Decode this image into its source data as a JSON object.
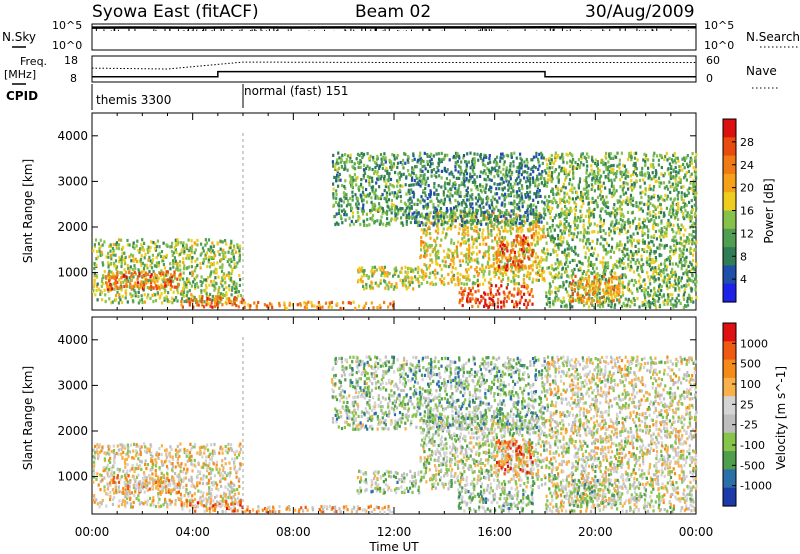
{
  "header": {
    "station": "Syowa East (fitACF)",
    "beam": "Beam 02",
    "date": "30/Aug/2009"
  },
  "summary_panels": {
    "nsky_label": "N.Sky",
    "nsky_ticks": [
      "10^5",
      "10^0"
    ],
    "nsearch_label": "N.Search",
    "nsearch_ticks": [
      "10^5",
      "10^0"
    ],
    "freq_label": "Freq.",
    "freq_unit": "[MHz]",
    "freq_ticks": [
      "18",
      "8"
    ],
    "nave_label": "Nave",
    "nave_ticks": [
      "60",
      "0"
    ],
    "cpid_label": "CPID"
  },
  "cpid_segments": [
    {
      "name": "themis 3300",
      "start_hr": 0,
      "end_hr": 6
    },
    {
      "name": "normal (fast) 151",
      "start_hr": 6,
      "end_hr": 24
    }
  ],
  "colors": {
    "power_scale": [
      "#1e22e8",
      "#1f4fa8",
      "#2f7d55",
      "#4f9e52",
      "#86c24a",
      "#f0cc1e",
      "#f5a21a",
      "#f07a14",
      "#e84a10",
      "#dd1010"
    ],
    "velocity_scale": [
      "#e01010",
      "#ee5a12",
      "#f48a18",
      "#f7b24a",
      "#d4d4d4",
      "#bebebe",
      "#86c44a",
      "#4f9e4c",
      "#2b6fa8",
      "#1c3aa8"
    ]
  },
  "chart_data": [
    {
      "type": "line",
      "title": "N.Sky / N.Search",
      "series": [
        {
          "name": "N.Sky",
          "style": "solid",
          "x": [
            0,
            2,
            4,
            6,
            8,
            10,
            12,
            14,
            16,
            18,
            20,
            22,
            24
          ],
          "values": [
            20000,
            21000,
            20500,
            22000,
            21500,
            22500,
            21000,
            23000,
            22000,
            24000,
            23000,
            25000,
            24000
          ]
        },
        {
          "name": "N.Search",
          "style": "dotted",
          "x": [
            0,
            6,
            12,
            18,
            24
          ],
          "values": [
            1,
            1,
            1,
            1,
            1
          ]
        }
      ],
      "ylim": [
        1,
        100000
      ],
      "yscale": "log",
      "xlim": [
        0,
        24
      ]
    },
    {
      "type": "line",
      "title": "Freq. / Nave",
      "series": [
        {
          "name": "Freq.",
          "style": "solid",
          "x": [
            0,
            5,
            5,
            18,
            18,
            24
          ],
          "values": [
            10,
            10,
            12,
            12,
            10,
            10
          ]
        },
        {
          "name": "Nave",
          "style": "dotted",
          "x": [
            0,
            3,
            6,
            12,
            18,
            24
          ],
          "values": [
            32,
            30,
            46,
            45,
            45,
            45
          ]
        }
      ],
      "y_left": {
        "label": "Freq. [MHz]",
        "lim": [
          8,
          18
        ]
      },
      "y_right": {
        "label": "Nave",
        "lim": [
          0,
          60
        ]
      },
      "xlim": [
        0,
        24
      ]
    },
    {
      "type": "heatmap",
      "title": "Power",
      "xlabel": "",
      "ylabel": "Slant Range [km]",
      "xlim": [
        0,
        24
      ],
      "ylim": [
        180,
        4500
      ],
      "xticks": [
        "00:00",
        "04:00",
        "08:00",
        "12:00",
        "16:00",
        "20:00",
        "00:00"
      ],
      "yticks": [
        1000,
        2000,
        3000,
        4000
      ],
      "colorbar": {
        "label": "Power [dB]",
        "ticks": [
          4,
          8,
          12,
          16,
          20,
          24,
          28
        ]
      },
      "regions": [
        {
          "t0": 0.0,
          "t1": 5.9,
          "r0": 300,
          "r1": 1700,
          "level": 0.45
        },
        {
          "t0": 0.5,
          "t1": 3.5,
          "r0": 600,
          "r1": 1000,
          "level": 0.8
        },
        {
          "t0": 3.5,
          "t1": 6.0,
          "r0": 200,
          "r1": 450,
          "level": 0.75
        },
        {
          "t0": 6.0,
          "t1": 12.0,
          "r0": 180,
          "r1": 330,
          "level": 0.7
        },
        {
          "t0": 10.5,
          "t1": 13.0,
          "r0": 600,
          "r1": 1100,
          "level": 0.5
        },
        {
          "t0": 13.0,
          "t1": 18.0,
          "r0": 700,
          "r1": 2300,
          "level": 0.55
        },
        {
          "t0": 14.5,
          "t1": 17.5,
          "r0": 200,
          "r1": 700,
          "level": 0.85
        },
        {
          "t0": 16.0,
          "t1": 17.5,
          "r0": 1000,
          "r1": 1800,
          "level": 0.8
        },
        {
          "t0": 12.5,
          "t1": 18.0,
          "r0": 2000,
          "r1": 3600,
          "level": 0.3
        },
        {
          "t0": 18.0,
          "t1": 24.0,
          "r0": 200,
          "r1": 3600,
          "level": 0.4
        },
        {
          "t0": 19.0,
          "t1": 21.0,
          "r0": 300,
          "r1": 900,
          "level": 0.7
        },
        {
          "t0": 9.5,
          "t1": 12.5,
          "r0": 2000,
          "r1": 3600,
          "level": 0.35
        }
      ]
    },
    {
      "type": "heatmap",
      "title": "Velocity",
      "xlabel": "Time UT",
      "ylabel": "Slant Range [km]",
      "xlim": [
        0,
        24
      ],
      "ylim": [
        180,
        4500
      ],
      "xticks": [
        "00:00",
        "04:00",
        "08:00",
        "12:00",
        "16:00",
        "20:00",
        "00:00"
      ],
      "yticks": [
        1000,
        2000,
        3000,
        4000
      ],
      "colorbar": {
        "label": "Velocity [m s^-1]",
        "ticks": [
          "1000",
          "500",
          "100",
          "25",
          "-25",
          "-100",
          "-500",
          "-1000"
        ]
      },
      "regions": [
        {
          "t0": 0.0,
          "t1": 5.9,
          "r0": 300,
          "r1": 1700,
          "level": 0.45
        },
        {
          "t0": 0.5,
          "t1": 3.5,
          "r0": 600,
          "r1": 1000,
          "level": 0.35
        },
        {
          "t0": 3.5,
          "t1": 6.0,
          "r0": 200,
          "r1": 450,
          "level": 0.3
        },
        {
          "t0": 6.0,
          "t1": 12.0,
          "r0": 180,
          "r1": 330,
          "level": 0.35
        },
        {
          "t0": 10.5,
          "t1": 13.0,
          "r0": 600,
          "r1": 1100,
          "level": 0.6
        },
        {
          "t0": 13.0,
          "t1": 18.0,
          "r0": 700,
          "r1": 2300,
          "level": 0.55
        },
        {
          "t0": 14.5,
          "t1": 17.5,
          "r0": 200,
          "r1": 700,
          "level": 0.62
        },
        {
          "t0": 16.0,
          "t1": 17.5,
          "r0": 1000,
          "r1": 1800,
          "level": 0.25
        },
        {
          "t0": 12.5,
          "t1": 18.0,
          "r0": 2000,
          "r1": 3600,
          "level": 0.65
        },
        {
          "t0": 18.0,
          "t1": 24.0,
          "r0": 200,
          "r1": 3600,
          "level": 0.5
        },
        {
          "t0": 19.0,
          "t1": 21.0,
          "r0": 300,
          "r1": 900,
          "level": 0.6
        },
        {
          "t0": 9.5,
          "t1": 12.5,
          "r0": 2000,
          "r1": 3600,
          "level": 0.6
        }
      ]
    }
  ],
  "x_axis": {
    "title": "Time UT",
    "ticks": [
      "00:00",
      "04:00",
      "08:00",
      "12:00",
      "16:00",
      "20:00",
      "00:00"
    ]
  }
}
